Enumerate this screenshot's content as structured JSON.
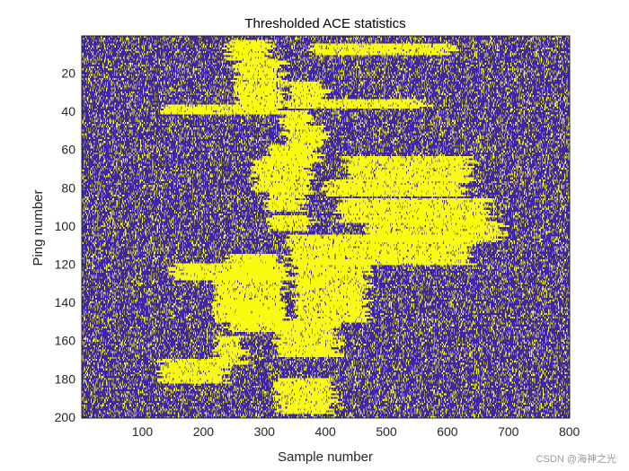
{
  "chart_data": {
    "type": "heatmap",
    "title": "Thresholded ACE statistics",
    "xlabel": "Sample number",
    "ylabel": "Ping number",
    "xlim": [
      1,
      800
    ],
    "ylim": [
      1,
      200
    ],
    "y_reversed": true,
    "x_ticks": [
      100,
      200,
      300,
      400,
      500,
      600,
      700,
      800
    ],
    "y_ticks": [
      20,
      40,
      60,
      80,
      100,
      120,
      140,
      160,
      180,
      200
    ],
    "x_tick_labels": [
      "100",
      "200",
      "300",
      "400",
      "500",
      "600",
      "700",
      "800"
    ],
    "y_tick_labels": [
      "20",
      "40",
      "60",
      "80",
      "100",
      "120",
      "140",
      "160",
      "180",
      "200"
    ],
    "n_rows": 200,
    "n_cols": 800,
    "values_binary": true,
    "colors": {
      "zero": "#3e26a8",
      "one": "#f9fb0e",
      "background": "#ffffff"
    },
    "background_detection_fraction": 0.22,
    "detection_segments": [
      {
        "ping": [
          3,
          13
        ],
        "sample": [
          240,
          310
        ]
      },
      {
        "ping": [
          5,
          10
        ],
        "sample": [
          380,
          610
        ]
      },
      {
        "ping": [
          14,
          36
        ],
        "sample": [
          255,
          330
        ]
      },
      {
        "ping": [
          25,
          33
        ],
        "sample": [
          340,
          400
        ]
      },
      {
        "ping": [
          34,
          38
        ],
        "sample": [
          340,
          565
        ]
      },
      {
        "ping": [
          37,
          41
        ],
        "sample": [
          130,
          330
        ]
      },
      {
        "ping": [
          40,
          48
        ],
        "sample": [
          330,
          380
        ]
      },
      {
        "ping": [
          48,
          58
        ],
        "sample": [
          335,
          400
        ]
      },
      {
        "ping": [
          58,
          66
        ],
        "sample": [
          305,
          390
        ]
      },
      {
        "ping": [
          64,
          76
        ],
        "sample": [
          435,
          640
        ]
      },
      {
        "ping": [
          66,
          82
        ],
        "sample": [
          285,
          375
        ]
      },
      {
        "ping": [
          76,
          84
        ],
        "sample": [
          400,
          630
        ]
      },
      {
        "ping": [
          82,
          92
        ],
        "sample": [
          305,
          360
        ]
      },
      {
        "ping": [
          86,
          98
        ],
        "sample": [
          420,
          670
        ]
      },
      {
        "ping": [
          98,
          108
        ],
        "sample": [
          470,
          690
        ]
      },
      {
        "ping": [
          95,
          102
        ],
        "sample": [
          310,
          380
        ]
      },
      {
        "ping": [
          105,
          120
        ],
        "sample": [
          340,
          640
        ]
      },
      {
        "ping": [
          115,
          126
        ],
        "sample": [
          240,
          320
        ]
      },
      {
        "ping": [
          120,
          128
        ],
        "sample": [
          150,
          340
        ]
      },
      {
        "ping": [
          125,
          150
        ],
        "sample": [
          220,
          330
        ]
      },
      {
        "ping": [
          118,
          150
        ],
        "sample": [
          350,
          470
        ]
      },
      {
        "ping": [
          140,
          155
        ],
        "sample": [
          240,
          325
        ]
      },
      {
        "ping": [
          150,
          168
        ],
        "sample": [
          320,
          420
        ]
      },
      {
        "ping": [
          158,
          172
        ],
        "sample": [
          220,
          265
        ]
      },
      {
        "ping": [
          170,
          182
        ],
        "sample": [
          130,
          240
        ]
      },
      {
        "ping": [
          180,
          198
        ],
        "sample": [
          320,
          410
        ]
      }
    ]
  },
  "watermark": "CSDN @海神之光"
}
